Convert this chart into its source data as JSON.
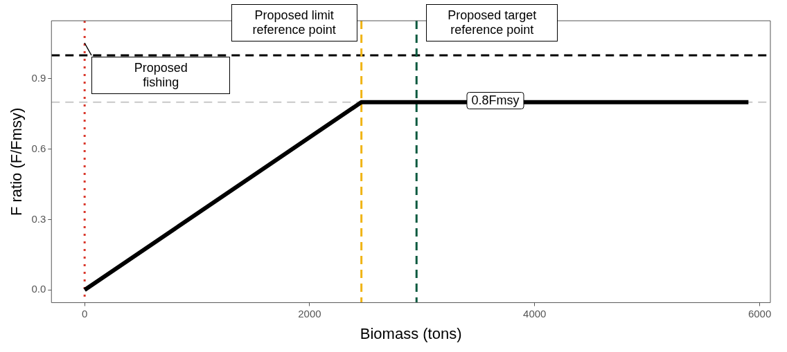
{
  "chart_data": {
    "type": "line",
    "xlabel": "Biomass (tons)",
    "ylabel": "F ratio (F/Fmsy)",
    "series": [
      {
        "color": "#000000",
        "x": [
          0,
          2460,
          5900
        ],
        "values": [
          0,
          0.8,
          0.8
        ]
      }
    ],
    "xlim": [
      -295,
      6095
    ],
    "xticks": [
      0,
      2000,
      4000,
      6000
    ],
    "ylim": [
      -0.054,
      1.147
    ],
    "yticks": [
      {
        "value": 0,
        "label": "0.0"
      },
      0.3,
      0.6,
      0.9
    ],
    "grid": false,
    "legend": false,
    "marker": "none",
    "line_style": "solid",
    "ref_lines": [
      {
        "axis": "y",
        "value": 0.8,
        "color": "#c8c8c8",
        "line_style": "dashed"
      },
      {
        "axis": "y",
        "value": 1.0,
        "color": "#000000",
        "line_style": "dashed",
        "label": "Proposed\nfishing"
      },
      {
        "axis": "x",
        "value": 0,
        "color": "#d9372b",
        "line_style": "dotted"
      },
      {
        "axis": "x",
        "value": 2460,
        "color": "#f0b414",
        "line_style": "dashed",
        "label": "Proposed limit\nreference point"
      },
      {
        "axis": "x",
        "value": 2950,
        "color": "#0b5a3f",
        "line_style": "dashed",
        "label": "Proposed target\nreference point"
      }
    ],
    "annotations": [
      {
        "text": "0.8Fmsy",
        "x": 3650,
        "y": 0.8
      }
    ]
  }
}
